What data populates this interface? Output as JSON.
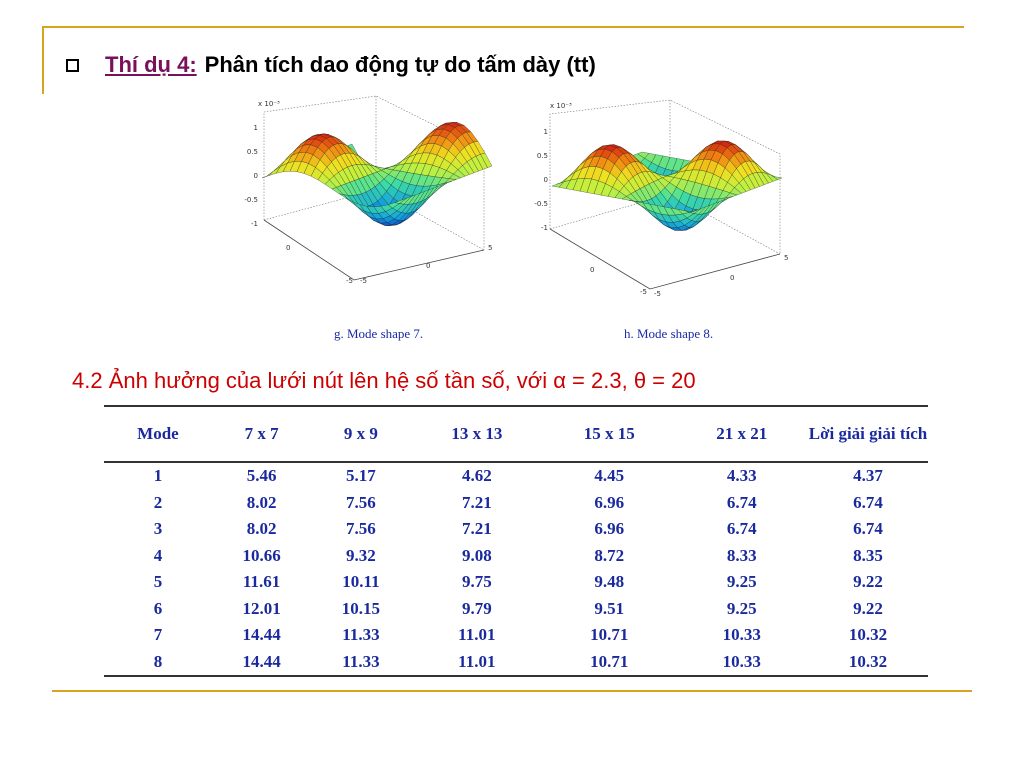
{
  "slide": {
    "title_prefix": "Thí dụ 4:",
    "title_rest": "Phân tích dao động tự do tấm dày (tt)",
    "bullet_icon": "square-bullet-icon"
  },
  "figures": [
    {
      "caption": "g. Mode shape 7.",
      "z_scale_label": "x 10⁻³",
      "z_ticks": [
        "1",
        "0.5",
        "0",
        "-0.5",
        "-1"
      ],
      "x_ticks": [
        "-5",
        "0",
        "5"
      ],
      "y_ticks": [
        "-5",
        "0",
        "5"
      ]
    },
    {
      "caption": "h. Mode shape 8.",
      "z_scale_label": "x 10⁻³",
      "z_ticks": [
        "1",
        "0.5",
        "0",
        "-0.5",
        "-1"
      ],
      "x_ticks": [
        "-5",
        "0",
        "5"
      ],
      "y_ticks": [
        "-5",
        "0",
        "5"
      ]
    }
  ],
  "section": {
    "heading": "4.2  Ảnh hưởng của lưới nút lên hệ số tần số, với α = 2.3, θ = 20"
  },
  "table": {
    "headers": [
      "Mode",
      "7 x 7",
      "9 x 9",
      "13 x 13",
      "15 x 15",
      "21 x 21",
      "Lời giải giải tích"
    ],
    "rows": [
      [
        "1",
        "5.46",
        "5.17",
        "4.62",
        "4.45",
        "4.33",
        "4.37"
      ],
      [
        "2",
        "8.02",
        "7.56",
        "7.21",
        "6.96",
        "6.74",
        "6.74"
      ],
      [
        "3",
        "8.02",
        "7.56",
        "7.21",
        "6.96",
        "6.74",
        "6.74"
      ],
      [
        "4",
        "10.66",
        "9.32",
        "9.08",
        "8.72",
        "8.33",
        "8.35"
      ],
      [
        "5",
        "11.61",
        "10.11",
        "9.75",
        "9.48",
        "9.25",
        "9.22"
      ],
      [
        "6",
        "12.01",
        "10.15",
        "9.79",
        "9.51",
        "9.25",
        "9.22"
      ],
      [
        "7",
        "14.44",
        "11.33",
        "11.01",
        "10.71",
        "10.33",
        "10.32"
      ],
      [
        "8",
        "14.44",
        "11.33",
        "11.01",
        "10.71",
        "10.33",
        "10.32"
      ]
    ]
  },
  "colors": {
    "frame": "#d9a520",
    "title_prefix": "#7a0f5a",
    "section_heading": "#cc0000",
    "table_text": "#1a2a9e"
  }
}
